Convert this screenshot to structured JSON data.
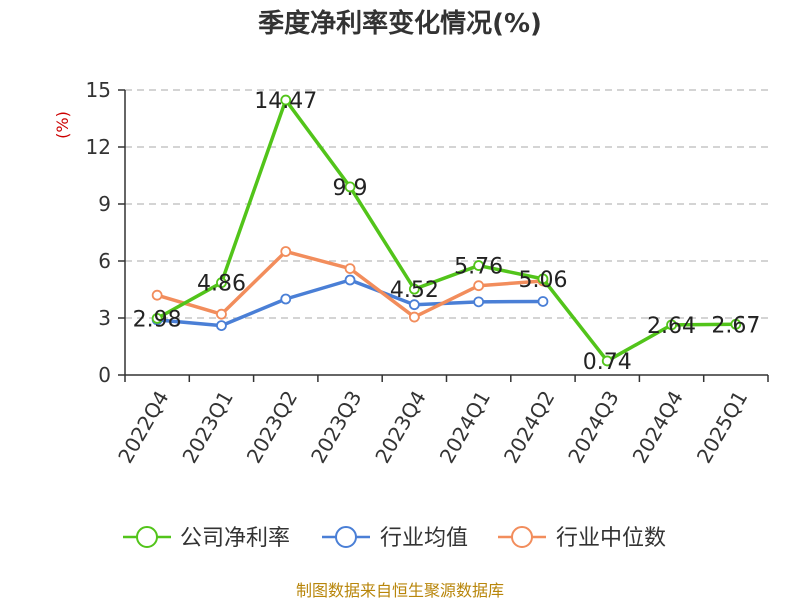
{
  "chart_data": {
    "type": "line",
    "title": "季度净利率变化情况(%)",
    "ylabel": "(%)",
    "ylim": [
      0,
      15
    ],
    "yticks": [
      0,
      3,
      6,
      9,
      12,
      15
    ],
    "grid": true,
    "legend_position": "bottom",
    "categories": [
      "2022Q4",
      "2023Q1",
      "2023Q2",
      "2023Q3",
      "2023Q4",
      "2024Q1",
      "2024Q2",
      "2024Q3",
      "2024Q4",
      "2025Q1"
    ],
    "series": [
      {
        "name": "公司净利率",
        "color": "#52c41a",
        "values": [
          2.98,
          4.86,
          14.47,
          9.9,
          4.52,
          5.76,
          5.06,
          0.74,
          2.64,
          2.67
        ],
        "show_labels": true
      },
      {
        "name": "行业均值",
        "color": "#4a7fd6",
        "values": [
          2.9,
          2.6,
          4.0,
          5.0,
          3.7,
          3.85,
          3.87,
          null,
          null,
          null
        ],
        "show_labels": false
      },
      {
        "name": "行业中位数",
        "color": "#f28d5c",
        "values": [
          4.2,
          3.2,
          6.5,
          5.6,
          3.05,
          4.7,
          4.95,
          null,
          null,
          null
        ],
        "show_labels": false
      }
    ],
    "source": "制图数据来自恒生聚源数据库"
  }
}
